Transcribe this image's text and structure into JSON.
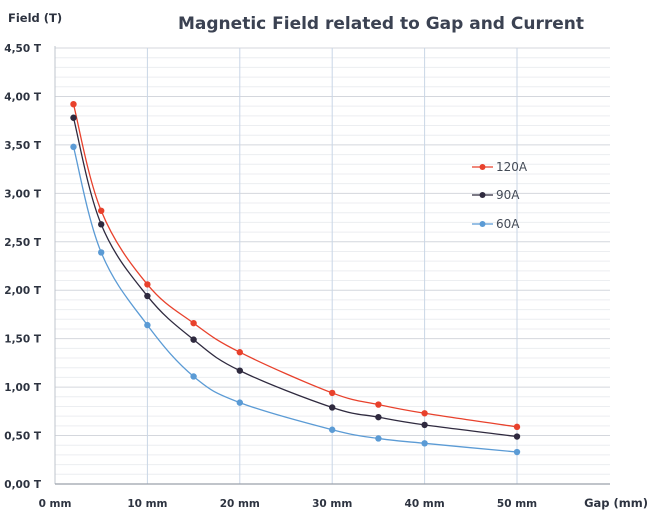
{
  "chart_data": {
    "type": "line",
    "title": "Magnetic Field related to Gap and Current",
    "ylabel": "Field (T)",
    "xlabel": "Gap (mm)",
    "xlim": [
      0,
      50
    ],
    "ylim": [
      0,
      4.5
    ],
    "x_ticks": [
      {
        "value": 0,
        "label": "0 mm"
      },
      {
        "value": 10,
        "label": "10 mm"
      },
      {
        "value": 20,
        "label": "20 mm"
      },
      {
        "value": 30,
        "label": "30 mm"
      },
      {
        "value": 40,
        "label": "40 mm"
      },
      {
        "value": 50,
        "label": "50 mm"
      }
    ],
    "y_ticks": [
      {
        "value": 0,
        "label": "0,00 T"
      },
      {
        "value": 0.5,
        "label": "0,50 T"
      },
      {
        "value": 1.0,
        "label": "1,00 T"
      },
      {
        "value": 1.5,
        "label": "1,50 T"
      },
      {
        "value": 2.0,
        "label": "2,00 T"
      },
      {
        "value": 2.5,
        "label": "2,50 T"
      },
      {
        "value": 3.0,
        "label": "3,00 T"
      },
      {
        "value": 3.5,
        "label": "3,50 T"
      },
      {
        "value": 4.0,
        "label": "4,00 T"
      },
      {
        "value": 4.5,
        "label": "4,50 T"
      }
    ],
    "grid": true,
    "legend_position": "right",
    "x": [
      2,
      5,
      10,
      15,
      20,
      30,
      35,
      40,
      50
    ],
    "series": [
      {
        "name": "120A",
        "color": "#e8412c",
        "values": [
          3.92,
          2.82,
          2.06,
          1.66,
          1.36,
          0.94,
          0.82,
          0.73,
          0.59
        ]
      },
      {
        "name": "90A",
        "color": "#2f2a3f",
        "values": [
          3.78,
          2.68,
          1.94,
          1.49,
          1.17,
          0.79,
          0.69,
          0.61,
          0.49
        ]
      },
      {
        "name": "60A",
        "color": "#5b9bd5",
        "values": [
          3.48,
          2.39,
          1.64,
          1.11,
          0.84,
          0.56,
          0.47,
          0.42,
          0.33
        ]
      }
    ]
  }
}
